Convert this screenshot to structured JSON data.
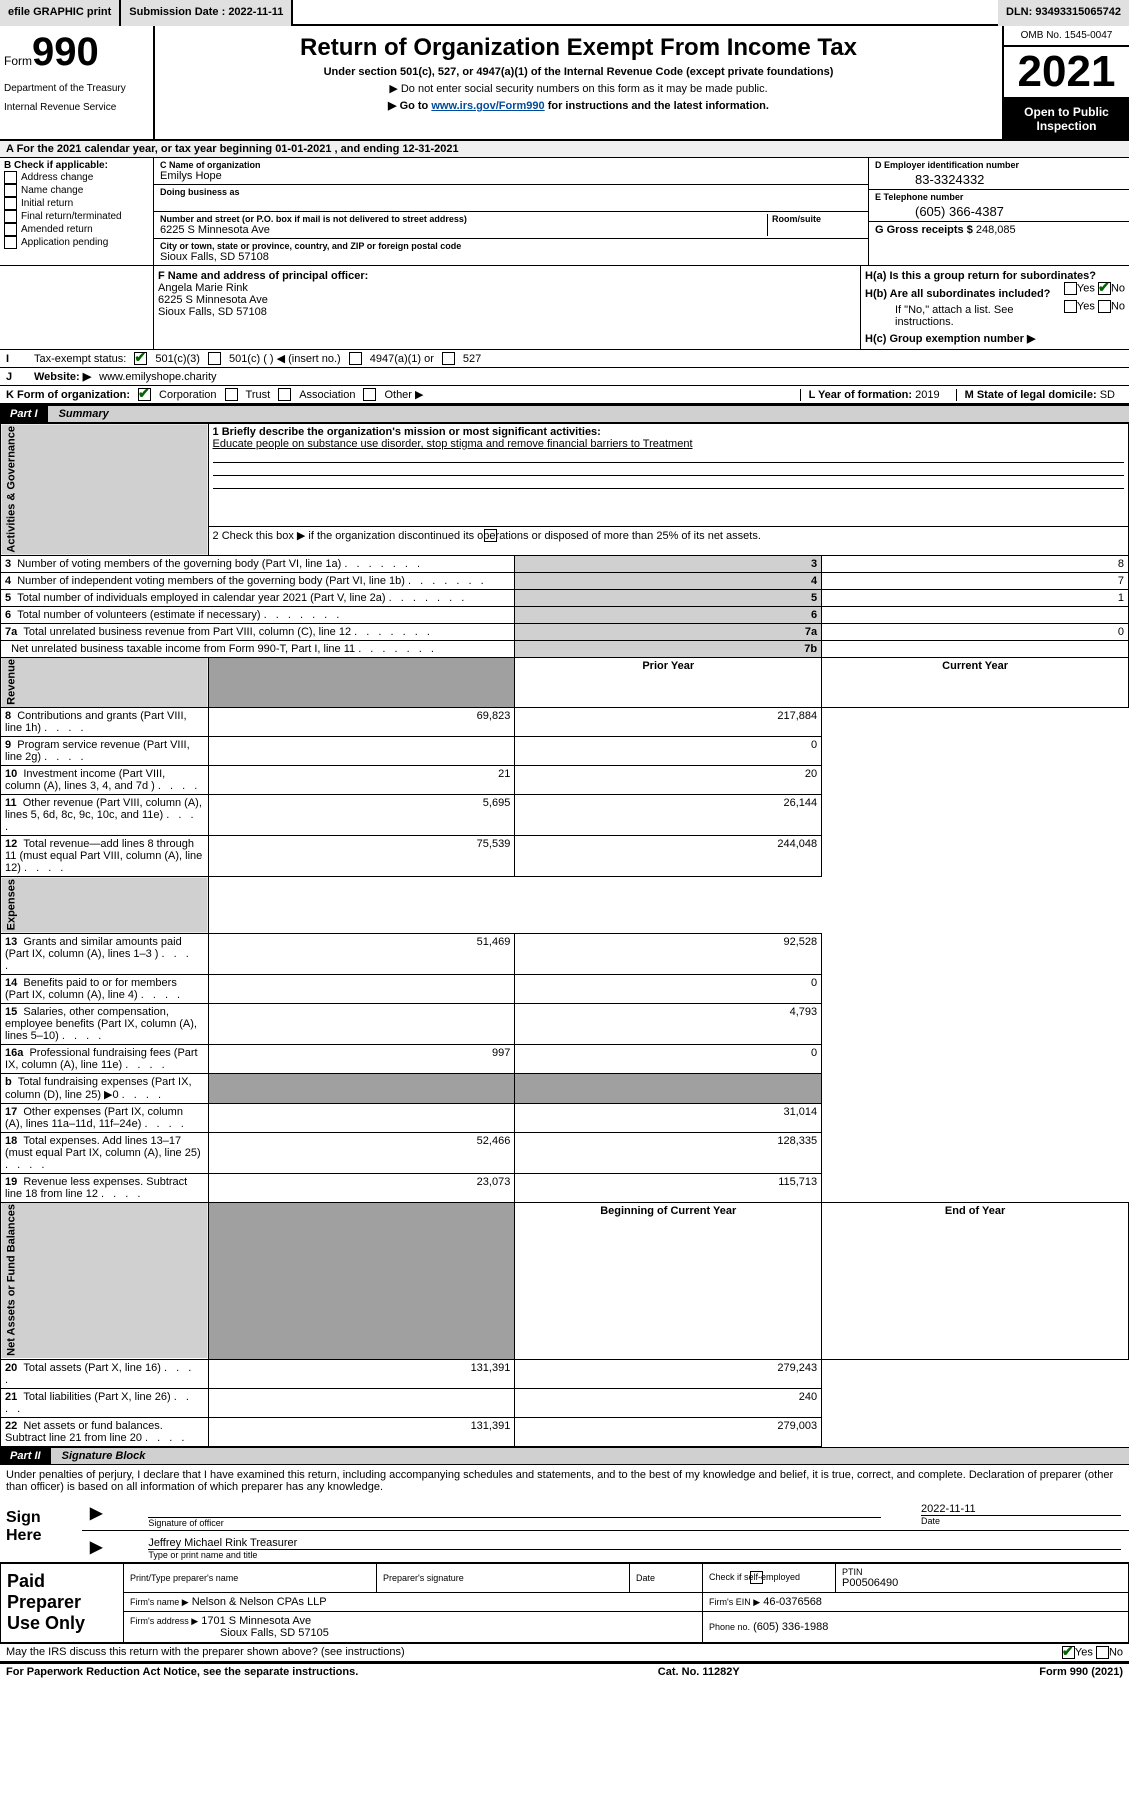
{
  "topbar": {
    "efile": "efile GRAPHIC print",
    "submission_label": "Submission Date : 2022-11-11",
    "dln": "DLN: 93493315065742"
  },
  "header": {
    "form_word": "Form",
    "form_num": "990",
    "title": "Return of Organization Exempt From Income Tax",
    "subtitle": "Under section 501(c), 527, or 4947(a)(1) of the Internal Revenue Code (except private foundations)",
    "inst1": "▶ Do not enter social security numbers on this form as it may be made public.",
    "inst2_pre": "▶ Go to ",
    "inst2_link": "www.irs.gov/Form990",
    "inst2_post": " for instructions and the latest information.",
    "dept": "Department of the Treasury",
    "irs": "Internal Revenue Service",
    "omb": "OMB No. 1545-0047",
    "year": "2021",
    "open": "Open to Public Inspection"
  },
  "A": {
    "text": "A For the 2021 calendar year, or tax year beginning 01-01-2021   , and ending 12-31-2021"
  },
  "B": {
    "label": "B Check if applicable:",
    "opts": [
      "Address change",
      "Name change",
      "Initial return",
      "Final return/terminated",
      "Amended return",
      "Application pending"
    ]
  },
  "C": {
    "name_label": "C Name of organization",
    "name": "Emilys Hope",
    "dba_label": "Doing business as",
    "addr_label": "Number and street (or P.O. box if mail is not delivered to street address)",
    "room_label": "Room/suite",
    "addr": "6225 S Minnesota Ave",
    "city_label": "City or town, state or province, country, and ZIP or foreign postal code",
    "city": "Sioux Falls, SD  57108"
  },
  "D": {
    "label": "D Employer identification number",
    "val": "83-3324332"
  },
  "E": {
    "label": "E Telephone number",
    "val": "(605) 366-4387"
  },
  "G": {
    "label": "G Gross receipts $",
    "val": "248,085"
  },
  "F": {
    "label": "F Name and address of principal officer:",
    "name": "Angela Marie Rink",
    "addr1": "6225 S Minnesota Ave",
    "addr2": "Sioux Falls, SD  57108"
  },
  "H": {
    "a_label": "H(a)  Is this a group return for subordinates?",
    "a_no": true,
    "b_label": "H(b)  Are all subordinates included?",
    "b_note": "If \"No,\" attach a list. See instructions.",
    "c_label": "H(c)  Group exemption number ▶"
  },
  "I": {
    "label": "Tax-exempt status:",
    "c3": "501(c)(3)",
    "c": "501(c) (   ) ◀ (insert no.)",
    "a1": "4947(a)(1) or",
    "s527": "527"
  },
  "J": {
    "label": "Website: ▶",
    "val": "www.emilyshope.charity"
  },
  "K": {
    "label": "K Form of organization:",
    "corp": "Corporation",
    "trust": "Trust",
    "assoc": "Association",
    "other": "Other ▶"
  },
  "L": {
    "label": "L Year of formation:",
    "val": "2019"
  },
  "M": {
    "label": "M State of legal domicile:",
    "val": "SD"
  },
  "part1": {
    "label": "Part I",
    "title": "Summary",
    "q1_label": "1  Briefly describe the organization's mission or most significant activities:",
    "q1_val": "Educate people on substance use disorder, stop stigma and remove financial barriers to Treatment",
    "q2": "2  Check this box ▶        if the organization discontinued its operations or disposed of more than 25% of its net assets.",
    "rows_gov": [
      {
        "n": "3",
        "txt": "Number of voting members of the governing body (Part VI, line 1a)",
        "c": "3",
        "v": "8"
      },
      {
        "n": "4",
        "txt": "Number of independent voting members of the governing body (Part VI, line 1b)",
        "c": "4",
        "v": "7"
      },
      {
        "n": "5",
        "txt": "Total number of individuals employed in calendar year 2021 (Part V, line 2a)",
        "c": "5",
        "v": "1"
      },
      {
        "n": "6",
        "txt": "Total number of volunteers (estimate if necessary)",
        "c": "6",
        "v": ""
      },
      {
        "n": "7a",
        "txt": "Total unrelated business revenue from Part VIII, column (C), line 12",
        "c": "7a",
        "v": "0"
      },
      {
        "n": "",
        "txt": "Net unrelated business taxable income from Form 990-T, Part I, line 11",
        "c": "7b",
        "v": ""
      }
    ],
    "hdr_prior": "Prior Year",
    "hdr_current": "Current Year",
    "rows_rev": [
      {
        "n": "8",
        "txt": "Contributions and grants (Part VIII, line 1h)",
        "p": "69,823",
        "c": "217,884"
      },
      {
        "n": "9",
        "txt": "Program service revenue (Part VIII, line 2g)",
        "p": "",
        "c": "0"
      },
      {
        "n": "10",
        "txt": "Investment income (Part VIII, column (A), lines 3, 4, and 7d )",
        "p": "21",
        "c": "20"
      },
      {
        "n": "11",
        "txt": "Other revenue (Part VIII, column (A), lines 5, 6d, 8c, 9c, 10c, and 11e)",
        "p": "5,695",
        "c": "26,144"
      },
      {
        "n": "12",
        "txt": "Total revenue—add lines 8 through 11 (must equal Part VIII, column (A), line 12)",
        "p": "75,539",
        "c": "244,048"
      }
    ],
    "rows_exp": [
      {
        "n": "13",
        "txt": "Grants and similar amounts paid (Part IX, column (A), lines 1–3 )",
        "p": "51,469",
        "c": "92,528"
      },
      {
        "n": "14",
        "txt": "Benefits paid to or for members (Part IX, column (A), line 4)",
        "p": "",
        "c": "0"
      },
      {
        "n": "15",
        "txt": "Salaries, other compensation, employee benefits (Part IX, column (A), lines 5–10)",
        "p": "",
        "c": "4,793"
      },
      {
        "n": "16a",
        "txt": "Professional fundraising fees (Part IX, column (A), line 11e)",
        "p": "997",
        "c": "0"
      },
      {
        "n": "b",
        "txt": "Total fundraising expenses (Part IX, column (D), line 25) ▶0",
        "p": "GREY",
        "c": "GREY"
      },
      {
        "n": "17",
        "txt": "Other expenses (Part IX, column (A), lines 11a–11d, 11f–24e)",
        "p": "",
        "c": "31,014"
      },
      {
        "n": "18",
        "txt": "Total expenses. Add lines 13–17 (must equal Part IX, column (A), line 25)",
        "p": "52,466",
        "c": "128,335"
      },
      {
        "n": "19",
        "txt": "Revenue less expenses. Subtract line 18 from line 12",
        "p": "23,073",
        "c": "115,713"
      }
    ],
    "hdr_begin": "Beginning of Current Year",
    "hdr_end": "End of Year",
    "rows_net": [
      {
        "n": "20",
        "txt": "Total assets (Part X, line 16)",
        "p": "131,391",
        "c": "279,243"
      },
      {
        "n": "21",
        "txt": "Total liabilities (Part X, line 26)",
        "p": "",
        "c": "240"
      },
      {
        "n": "22",
        "txt": "Net assets or fund balances. Subtract line 21 from line 20",
        "p": "131,391",
        "c": "279,003"
      }
    ],
    "labels": {
      "gov": "Activities & Governance",
      "rev": "Revenue",
      "exp": "Expenses",
      "net": "Net Assets or Fund Balances"
    }
  },
  "part2": {
    "label": "Part II",
    "title": "Signature Block",
    "declaration": "Under penalties of perjury, I declare that I have examined this return, including accompanying schedules and statements, and to the best of my knowledge and belief, it is true, correct, and complete. Declaration of preparer (other than officer) is based on all information of which preparer has any knowledge.",
    "sign_here": "Sign Here",
    "sig_officer": "Signature of officer",
    "date_label": "Date",
    "date_val": "2022-11-11",
    "officer_name": "Jeffrey Michael Rink  Treasurer",
    "officer_sub": "Type or print name and title",
    "paid": "Paid Preparer Use Only",
    "prep_name_label": "Print/Type preparer's name",
    "prep_sig_label": "Preparer's signature",
    "check_self": "Check         if self-employed",
    "ptin_label": "PTIN",
    "ptin": "P00506490",
    "firm_name_label": "Firm's name      ▶",
    "firm_name": "Nelson & Nelson CPAs LLP",
    "firm_ein_label": "Firm's EIN ▶",
    "firm_ein": "46-0376568",
    "firm_addr_label": "Firm's address ▶",
    "firm_addr1": "1701 S Minnesota Ave",
    "firm_addr2": "Sioux Falls, SD  57105",
    "phone_label": "Phone no.",
    "phone": "(605) 336-1988",
    "may_irs": "May the IRS discuss this return with the preparer shown above? (see instructions)",
    "yes": "Yes",
    "no": "No"
  },
  "footer": {
    "pra": "For Paperwork Reduction Act Notice, see the separate instructions.",
    "cat": "Cat. No. 11282Y",
    "form": "Form 990 (2021)"
  }
}
